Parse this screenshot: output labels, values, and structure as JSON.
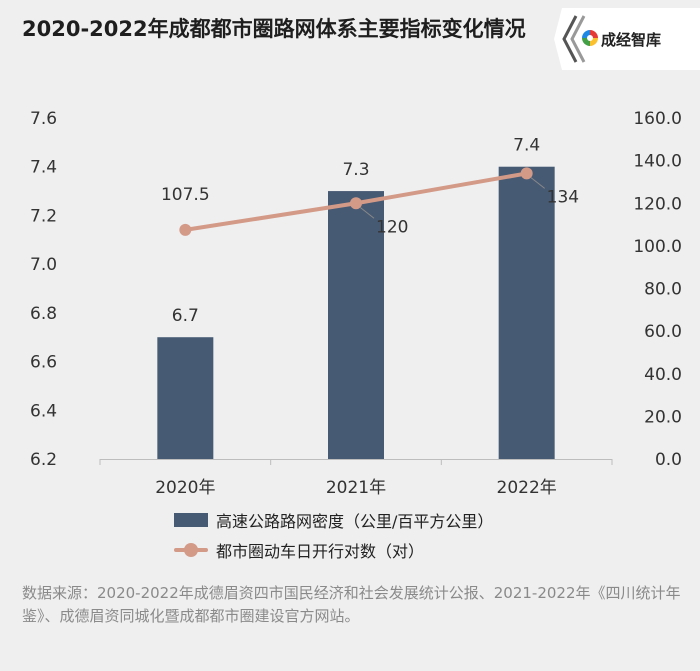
{
  "title": "2020-2022年成都都市圈路网体系主要指标变化情况",
  "logo": {
    "text": "成经智库",
    "icon": "brand-swirl-icon"
  },
  "legend": {
    "bar_label": "高速公路路网密度（公里/百平方公里）",
    "line_label": "都市圈动车日开行对数（对）"
  },
  "source": "数据来源：2020-2022年成德眉资四市国民经济和社会发展统计公报、2021-2022年《四川统计年鉴》、成德眉资同城化暨成都都市圈建设官方网站。",
  "colors": {
    "bar": "#475a73",
    "line": "#d49a88",
    "background": "#efefef"
  },
  "chart_data": {
    "type": "bar",
    "categories": [
      "2020年",
      "2021年",
      "2022年"
    ],
    "series": [
      {
        "name": "高速公路路网密度（公里/百平方公里）",
        "type": "bar",
        "axis": "left",
        "values": [
          6.7,
          7.3,
          7.4
        ],
        "labels": [
          "6.7",
          "7.3",
          "7.4"
        ]
      },
      {
        "name": "都市圈动车日开行对数（对）",
        "type": "line",
        "axis": "right",
        "values": [
          107.5,
          120,
          134
        ],
        "labels": [
          "107.5",
          "120",
          "134"
        ]
      }
    ],
    "y_left": {
      "min": 6.2,
      "max": 7.6,
      "ticks": [
        "6.2",
        "6.4",
        "6.6",
        "6.8",
        "7.0",
        "7.2",
        "7.4",
        "7.6"
      ]
    },
    "y_right": {
      "min": 0,
      "max": 160,
      "ticks": [
        "0.0",
        "20.0",
        "40.0",
        "60.0",
        "80.0",
        "100.0",
        "120.0",
        "140.0",
        "160.0"
      ]
    },
    "grid": false,
    "legend_position": "bottom"
  }
}
